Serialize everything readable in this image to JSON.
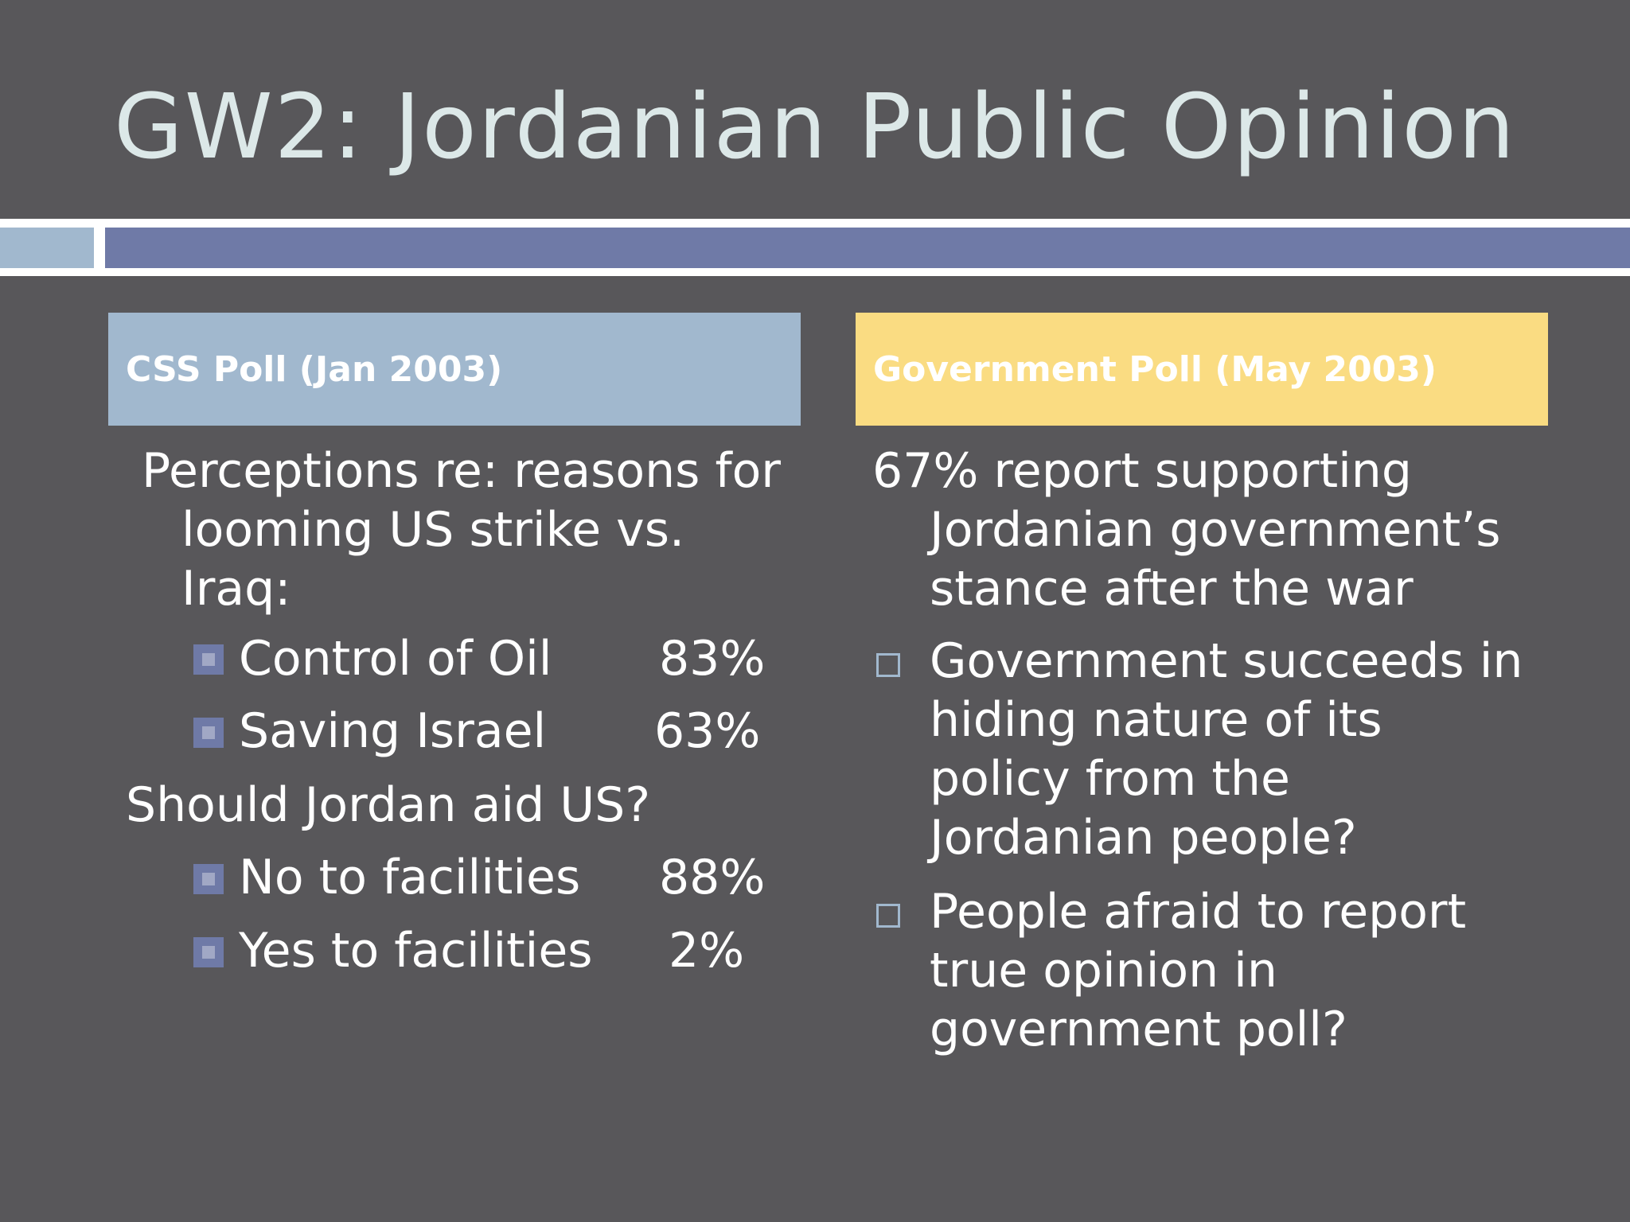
{
  "title": "GW2: Jordanian Public Opinion",
  "left": {
    "header": "CSS Poll (Jan 2003)",
    "intro_lines": [
      "Perceptions re: reasons for",
      "looming US strike vs.",
      "Iraq:"
    ],
    "items1": [
      {
        "label": "Control of Oil",
        "value": "83%"
      },
      {
        "label": "Saving Israel",
        "value": "63%"
      }
    ],
    "question": "Should Jordan aid US?",
    "items2": [
      {
        "label": "No to facilities",
        "value": "88%"
      },
      {
        "label": "Yes to facilities",
        "value": "2%"
      }
    ]
  },
  "right": {
    "header": "Government Poll (May 2003)",
    "intro_lines": [
      "67% report supporting",
      "Jordanian government’s",
      "stance after the war"
    ],
    "bullets": [
      {
        "lines": [
          "Government succeeds in",
          "hiding nature of its",
          "policy from the",
          "Jordanian people?"
        ]
      },
      {
        "lines": [
          "People afraid to report",
          "true opinion in",
          "government poll?"
        ]
      }
    ]
  }
}
